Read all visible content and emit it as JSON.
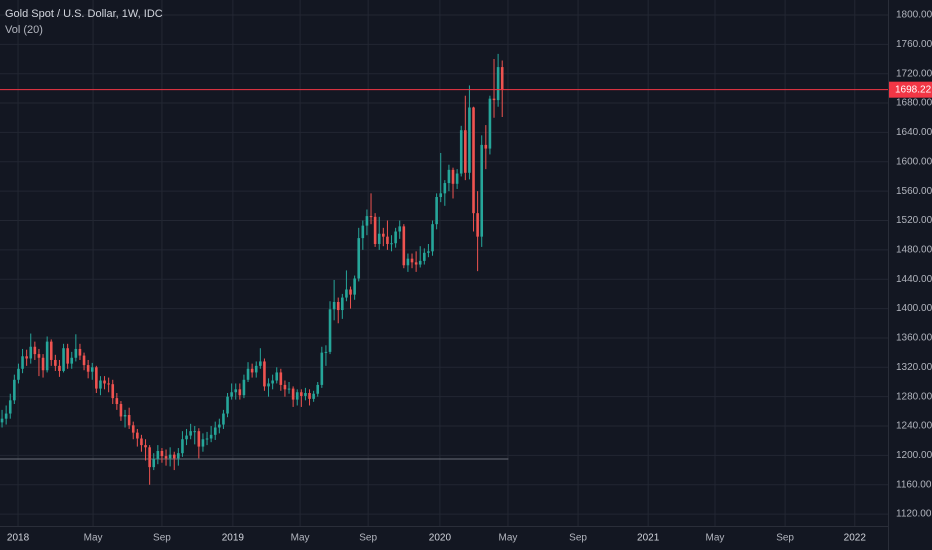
{
  "chart_data": {
    "type": "candlestick",
    "title": "Gold Spot / U.S. Dollar, 1W, IDC",
    "indicator_label": "Vol (20)",
    "up_color": "#26a69a",
    "down_color": "#ef5350",
    "last_price_color": "#f23645",
    "hline": 1195,
    "hline_color": "#6a6e78",
    "grid": true,
    "xlim": [
      -0.5,
      216.1
    ],
    "ylim": [
      1103.8,
      1820.4
    ],
    "xticks": [
      {
        "value": 3.9,
        "label": "2018"
      },
      {
        "value": 22.2,
        "label": "May"
      },
      {
        "value": 39,
        "label": "Sep"
      },
      {
        "value": 56.3,
        "label": "2019"
      },
      {
        "value": 72.7,
        "label": "May"
      },
      {
        "value": 89.3,
        "label": "Sep"
      },
      {
        "value": 106.8,
        "label": "2020"
      },
      {
        "value": 123.4,
        "label": "May"
      },
      {
        "value": 140.5,
        "label": "Sep"
      },
      {
        "value": 157.6,
        "label": "2021"
      },
      {
        "value": 173.9,
        "label": "May"
      },
      {
        "value": 191,
        "label": "Sep"
      },
      {
        "value": 208,
        "label": "2022"
      }
    ],
    "yticks": [
      {
        "value": 1120,
        "label": "1120.00"
      },
      {
        "value": 1160,
        "label": "1160.00"
      },
      {
        "value": 1200,
        "label": "1200.00"
      },
      {
        "value": 1240,
        "label": "1240.00"
      },
      {
        "value": 1280,
        "label": "1280.00"
      },
      {
        "value": 1320,
        "label": "1320.00"
      },
      {
        "value": 1360,
        "label": "1360.00"
      },
      {
        "value": 1400,
        "label": "1400.00"
      },
      {
        "value": 1440,
        "label": "1440.00"
      },
      {
        "value": 1480,
        "label": "1480.00"
      },
      {
        "value": 1520,
        "label": "1520.00"
      },
      {
        "value": 1560,
        "label": "1560.00"
      },
      {
        "value": 1600,
        "label": "1600.00"
      },
      {
        "value": 1640,
        "label": "1640.00"
      },
      {
        "value": 1680,
        "label": "1680.00"
      },
      {
        "value": 1720,
        "label": "1720.00"
      },
      {
        "value": 1760,
        "label": "1760.00"
      },
      {
        "value": 1800,
        "label": "1800.00"
      }
    ],
    "open": [
      1245,
      1250,
      1257,
      1275,
      1303,
      1318,
      1335,
      1332,
      1348,
      1338,
      1333,
      1316,
      1355,
      1330,
      1322,
      1315,
      1346,
      1325,
      1333,
      1345,
      1336,
      1323,
      1314,
      1320,
      1291,
      1302,
      1298,
      1297,
      1278,
      1270,
      1253,
      1255,
      1241,
      1231,
      1223,
      1214,
      1211,
      1184,
      1195,
      1206,
      1199,
      1196,
      1201,
      1196,
      1203,
      1222,
      1227,
      1233,
      1233,
      1212,
      1222,
      1223,
      1228,
      1238,
      1242,
      1257,
      1280,
      1286,
      1290,
      1282,
      1303,
      1318,
      1313,
      1322,
      1328,
      1294,
      1298,
      1302,
      1313,
      1296,
      1290,
      1291,
      1276,
      1286,
      1281,
      1285,
      1277,
      1284,
      1296,
      1340,
      1341,
      1399,
      1409,
      1398,
      1415,
      1426,
      1419,
      1441,
      1496,
      1513,
      1526,
      1525,
      1488,
      1502,
      1498,
      1488,
      1489,
      1505,
      1512,
      1459,
      1468,
      1463,
      1460,
      1465,
      1476,
      1478,
      1515,
      1552,
      1557,
      1571,
      1589,
      1570,
      1584,
      1643,
      1585,
      1674,
      1530,
      1498,
      1623,
      1618,
      1686,
      1684,
      1729
    ],
    "high": [
      1262,
      1268,
      1284,
      1310,
      1325,
      1345,
      1344,
      1366,
      1355,
      1345,
      1338,
      1362,
      1358,
      1337,
      1330,
      1352,
      1352,
      1341,
      1365,
      1352,
      1340,
      1330,
      1326,
      1322,
      1308,
      1308,
      1306,
      1303,
      1285,
      1274,
      1262,
      1265,
      1246,
      1236,
      1228,
      1222,
      1214,
      1203,
      1214,
      1210,
      1208,
      1211,
      1205,
      1210,
      1233,
      1236,
      1243,
      1240,
      1237,
      1230,
      1232,
      1240,
      1246,
      1250,
      1262,
      1285,
      1298,
      1298,
      1298,
      1310,
      1327,
      1325,
      1328,
      1346,
      1332,
      1305,
      1310,
      1320,
      1318,
      1302,
      1300,
      1294,
      1290,
      1290,
      1292,
      1290,
      1288,
      1300,
      1348,
      1350,
      1410,
      1439,
      1415,
      1420,
      1452,
      1430,
      1445,
      1510,
      1520,
      1535,
      1557,
      1530,
      1525,
      1510,
      1520,
      1500,
      1510,
      1520,
      1515,
      1475,
      1475,
      1478,
      1485,
      1482,
      1488,
      1520,
      1557,
      1612,
      1575,
      1596,
      1592,
      1590,
      1649,
      1690,
      1704,
      1675,
      1560,
      1636,
      1650,
      1690,
      1740,
      1747,
      1738
    ],
    "low": [
      1238,
      1242,
      1250,
      1270,
      1298,
      1312,
      1322,
      1325,
      1330,
      1308,
      1306,
      1313,
      1322,
      1315,
      1307,
      1313,
      1318,
      1318,
      1328,
      1330,
      1316,
      1305,
      1303,
      1285,
      1282,
      1290,
      1286,
      1270,
      1262,
      1247,
      1238,
      1236,
      1222,
      1212,
      1205,
      1193,
      1160,
      1180,
      1188,
      1190,
      1186,
      1185,
      1180,
      1186,
      1198,
      1214,
      1222,
      1215,
      1196,
      1205,
      1214,
      1218,
      1221,
      1230,
      1236,
      1252,
      1276,
      1276,
      1276,
      1278,
      1300,
      1306,
      1306,
      1318,
      1288,
      1280,
      1290,
      1298,
      1288,
      1280,
      1284,
      1266,
      1268,
      1266,
      1275,
      1268,
      1273,
      1280,
      1292,
      1322,
      1338,
      1384,
      1380,
      1386,
      1410,
      1400,
      1412,
      1437,
      1480,
      1500,
      1515,
      1484,
      1480,
      1485,
      1480,
      1478,
      1483,
      1495,
      1455,
      1450,
      1455,
      1450,
      1456,
      1460,
      1470,
      1472,
      1508,
      1545,
      1540,
      1560,
      1550,
      1563,
      1580,
      1575,
      1576,
      1505,
      1451,
      1484,
      1590,
      1610,
      1660,
      1675,
      1661
    ],
    "close": [
      1250,
      1257,
      1275,
      1303,
      1318,
      1335,
      1332,
      1348,
      1338,
      1333,
      1316,
      1355,
      1330,
      1322,
      1315,
      1346,
      1325,
      1333,
      1345,
      1336,
      1323,
      1314,
      1320,
      1291,
      1302,
      1298,
      1297,
      1278,
      1270,
      1253,
      1255,
      1241,
      1231,
      1223,
      1214,
      1211,
      1184,
      1195,
      1206,
      1199,
      1196,
      1201,
      1196,
      1203,
      1222,
      1227,
      1233,
      1233,
      1212,
      1222,
      1223,
      1228,
      1238,
      1242,
      1257,
      1280,
      1286,
      1290,
      1282,
      1303,
      1318,
      1313,
      1322,
      1328,
      1294,
      1298,
      1302,
      1313,
      1296,
      1290,
      1291,
      1276,
      1286,
      1281,
      1285,
      1277,
      1284,
      1296,
      1340,
      1341,
      1399,
      1409,
      1398,
      1415,
      1426,
      1419,
      1441,
      1496,
      1513,
      1526,
      1525,
      1488,
      1502,
      1498,
      1488,
      1489,
      1505,
      1512,
      1459,
      1468,
      1463,
      1460,
      1465,
      1476,
      1478,
      1515,
      1552,
      1557,
      1571,
      1589,
      1570,
      1584,
      1643,
      1585,
      1674,
      1530,
      1498,
      1623,
      1618,
      1686,
      1684,
      1729,
      1698.22
    ]
  }
}
